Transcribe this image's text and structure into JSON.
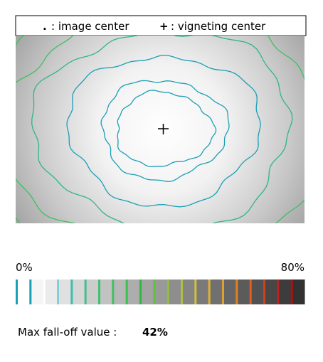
{
  "legend": [
    {
      "symbol": ".",
      "label": ": image center"
    },
    {
      "symbol": "+",
      "label": ": vigneting center"
    }
  ],
  "scale": {
    "min_label": "0%",
    "max_label": "80%"
  },
  "result": {
    "label": "Max fall-off value :",
    "value": "42%"
  }
}
